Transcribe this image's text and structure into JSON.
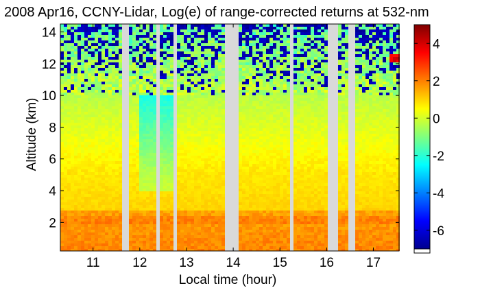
{
  "chart_data": {
    "type": "heatmap",
    "title": "2008 Apr16, CCNY-Lidar, Log(e) of range-corrected returns at 532-nm",
    "xlabel": "Local time (hour)",
    "ylabel": "Altitude (km)",
    "xlim": [
      10.3,
      17.55
    ],
    "ylim": [
      0.2,
      14.5
    ],
    "x_ticks": [
      11,
      12,
      13,
      14,
      15,
      16,
      17
    ],
    "y_ticks": [
      2,
      4,
      6,
      8,
      10,
      12,
      14
    ],
    "colorbar": {
      "range": [
        -7,
        5
      ],
      "ticks": [
        4,
        2,
        0,
        -2,
        -4,
        -6
      ],
      "colormap": "jet"
    },
    "data_gaps_hours": [
      [
        11.6,
        11.75
      ],
      [
        12.35,
        12.45
      ],
      [
        12.7,
        12.78
      ],
      [
        13.8,
        14.1
      ],
      [
        15.25,
        15.3
      ],
      [
        16.0,
        16.25
      ],
      [
        16.5,
        16.6
      ]
    ],
    "features": {
      "boundary_layer_top_km": 2.8,
      "near_surface_log_signal": 2,
      "mid_troposphere_log_signal": 0.5,
      "upper_noise_above_km": 10,
      "cloud_near_km": 12.3,
      "cloud_time_hour": 17.45,
      "cloud_log_signal": 4.3
    }
  }
}
